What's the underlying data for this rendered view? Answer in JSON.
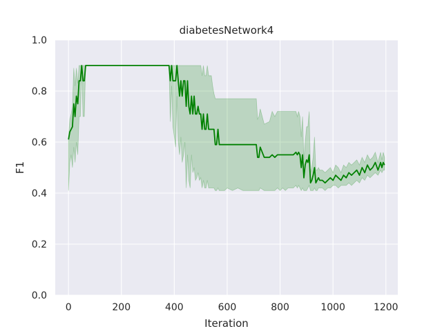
{
  "chart_data": {
    "type": "line",
    "title": "diabetesNetwork4",
    "xlabel": "Iteration",
    "ylabel": "F1",
    "xlim": [
      -50,
      1245
    ],
    "ylim": [
      0.0,
      1.0
    ],
    "xticks": [
      0,
      200,
      400,
      600,
      800,
      1000,
      1200
    ],
    "yticks": [
      0.0,
      0.2,
      0.4,
      0.6,
      0.8,
      1.0
    ],
    "xtick_labels": [
      "0",
      "200",
      "400",
      "600",
      "800",
      "1000",
      "1200"
    ],
    "ytick_labels": [
      "0.0",
      "0.2",
      "0.4",
      "0.6",
      "0.8",
      "1.0"
    ],
    "grid": true,
    "colors": {
      "background": "#eaeaf2",
      "grid": "#ffffff",
      "line": "#008000",
      "band": "#008000"
    },
    "series": [
      {
        "x": [
          0,
          5,
          10,
          15,
          20,
          25,
          30,
          35,
          40,
          45,
          50,
          55,
          60,
          65,
          70,
          100,
          200,
          300,
          380,
          385,
          390,
          395,
          400,
          405,
          410,
          415,
          420,
          425,
          430,
          435,
          440,
          445,
          450,
          455,
          460,
          465,
          470,
          475,
          480,
          485,
          490,
          495,
          500,
          505,
          510,
          515,
          520,
          525,
          530,
          535,
          540,
          545,
          550,
          555,
          560,
          565,
          570,
          575,
          580,
          590,
          600,
          620,
          640,
          660,
          680,
          700,
          710,
          715,
          720,
          725,
          740,
          760,
          770,
          780,
          790,
          800,
          810,
          820,
          830,
          840,
          850,
          860,
          865,
          870,
          875,
          880,
          885,
          890,
          895,
          900,
          905,
          910,
          915,
          920,
          925,
          930,
          935,
          940,
          945,
          950,
          960,
          970,
          980,
          990,
          1000,
          1010,
          1020,
          1030,
          1040,
          1050,
          1060,
          1070,
          1080,
          1090,
          1100,
          1110,
          1120,
          1130,
          1140,
          1150,
          1160,
          1170,
          1180,
          1185,
          1190,
          1195
        ],
        "y": [
          0.61,
          0.64,
          0.65,
          0.66,
          0.75,
          0.7,
          0.78,
          0.75,
          0.84,
          0.84,
          0.9,
          0.84,
          0.84,
          0.9,
          0.9,
          0.9,
          0.9,
          0.9,
          0.9,
          0.84,
          0.9,
          0.84,
          0.84,
          0.84,
          0.9,
          0.84,
          0.78,
          0.84,
          0.78,
          0.84,
          0.84,
          0.74,
          0.84,
          0.74,
          0.71,
          0.78,
          0.71,
          0.78,
          0.71,
          0.71,
          0.74,
          0.71,
          0.71,
          0.65,
          0.71,
          0.65,
          0.65,
          0.71,
          0.65,
          0.65,
          0.65,
          0.65,
          0.65,
          0.59,
          0.59,
          0.65,
          0.59,
          0.59,
          0.59,
          0.59,
          0.59,
          0.59,
          0.59,
          0.59,
          0.59,
          0.59,
          0.59,
          0.54,
          0.54,
          0.58,
          0.54,
          0.54,
          0.55,
          0.54,
          0.55,
          0.55,
          0.55,
          0.55,
          0.55,
          0.55,
          0.55,
          0.56,
          0.55,
          0.56,
          0.55,
          0.5,
          0.55,
          0.46,
          0.51,
          0.53,
          0.52,
          0.55,
          0.44,
          0.45,
          0.47,
          0.5,
          0.44,
          0.45,
          0.46,
          0.45,
          0.45,
          0.44,
          0.45,
          0.46,
          0.45,
          0.47,
          0.46,
          0.45,
          0.47,
          0.46,
          0.48,
          0.47,
          0.48,
          0.49,
          0.47,
          0.5,
          0.48,
          0.51,
          0.49,
          0.5,
          0.52,
          0.49,
          0.52,
          0.5,
          0.52,
          0.51
        ],
        "lower": [
          0.41,
          0.52,
          0.55,
          0.5,
          0.58,
          0.52,
          0.6,
          0.55,
          0.7,
          0.7,
          0.9,
          0.7,
          0.7,
          0.9,
          0.9,
          0.9,
          0.9,
          0.9,
          0.9,
          0.68,
          0.82,
          0.66,
          0.62,
          0.58,
          0.78,
          0.6,
          0.55,
          0.62,
          0.52,
          0.55,
          0.6,
          0.42,
          0.55,
          0.45,
          0.42,
          0.55,
          0.48,
          0.5,
          0.45,
          0.46,
          0.48,
          0.45,
          0.46,
          0.42,
          0.45,
          0.42,
          0.42,
          0.45,
          0.42,
          0.42,
          0.42,
          0.42,
          0.42,
          0.41,
          0.41,
          0.42,
          0.41,
          0.41,
          0.41,
          0.41,
          0.42,
          0.41,
          0.42,
          0.41,
          0.41,
          0.41,
          0.41,
          0.41,
          0.41,
          0.42,
          0.41,
          0.41,
          0.41,
          0.41,
          0.42,
          0.41,
          0.42,
          0.41,
          0.42,
          0.42,
          0.42,
          0.43,
          0.42,
          0.43,
          0.42,
          0.41,
          0.42,
          0.41,
          0.41,
          0.41,
          0.42,
          0.43,
          0.41,
          0.41,
          0.41,
          0.42,
          0.41,
          0.41,
          0.42,
          0.42,
          0.42,
          0.41,
          0.42,
          0.42,
          0.43,
          0.43,
          0.42,
          0.43,
          0.43,
          0.43,
          0.44,
          0.43,
          0.44,
          0.45,
          0.44,
          0.46,
          0.45,
          0.47,
          0.46,
          0.47,
          0.48,
          0.47,
          0.49,
          0.48,
          0.49,
          0.49
        ],
        "upper": [
          0.62,
          0.69,
          0.71,
          0.74,
          0.89,
          0.82,
          0.89,
          0.83,
          0.9,
          0.9,
          0.9,
          0.9,
          0.9,
          0.9,
          0.9,
          0.9,
          0.9,
          0.9,
          0.9,
          0.9,
          0.9,
          0.9,
          0.9,
          0.9,
          0.9,
          0.9,
          0.9,
          0.9,
          0.9,
          0.9,
          0.9,
          0.9,
          0.9,
          0.9,
          0.9,
          0.9,
          0.9,
          0.9,
          0.9,
          0.9,
          0.9,
          0.9,
          0.9,
          0.86,
          0.9,
          0.86,
          0.86,
          0.9,
          0.86,
          0.86,
          0.86,
          0.82,
          0.79,
          0.77,
          0.77,
          0.77,
          0.77,
          0.77,
          0.77,
          0.77,
          0.77,
          0.77,
          0.77,
          0.77,
          0.77,
          0.77,
          0.77,
          0.69,
          0.7,
          0.73,
          0.67,
          0.68,
          0.72,
          0.7,
          0.72,
          0.72,
          0.72,
          0.72,
          0.72,
          0.72,
          0.72,
          0.72,
          0.7,
          0.72,
          0.7,
          0.62,
          0.7,
          0.53,
          0.6,
          0.66,
          0.66,
          0.72,
          0.48,
          0.5,
          0.54,
          0.62,
          0.49,
          0.49,
          0.5,
          0.49,
          0.49,
          0.48,
          0.49,
          0.5,
          0.48,
          0.51,
          0.5,
          0.48,
          0.51,
          0.5,
          0.52,
          0.51,
          0.52,
          0.53,
          0.51,
          0.54,
          0.52,
          0.55,
          0.53,
          0.54,
          0.56,
          0.52,
          0.56,
          0.53,
          0.56,
          0.54
        ]
      }
    ]
  }
}
